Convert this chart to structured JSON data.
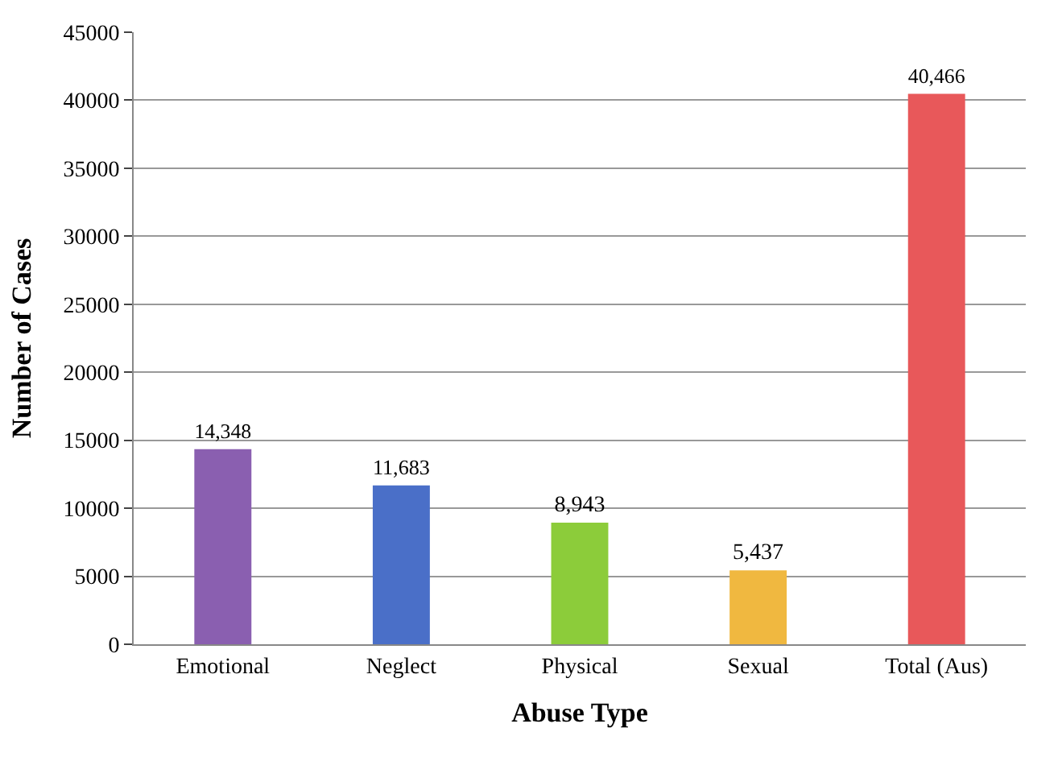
{
  "chart_data": {
    "type": "bar",
    "xlabel": "Abuse Type",
    "ylabel": "Number of Cases",
    "categories": [
      "Emotional",
      "Neglect",
      "Physical",
      "Sexual",
      "Total (Aus)"
    ],
    "values": [
      14348,
      11683,
      8943,
      5437,
      40466
    ],
    "colors": [
      "#8a5fb0",
      "#4a6fc8",
      "#8ccc3a",
      "#f0b840",
      "#e8585a"
    ],
    "value_labels": [
      "14,348",
      "11,683",
      "8,943",
      "5,437",
      "40,466"
    ],
    "ylim": [
      0,
      45000
    ],
    "yticks": [
      0,
      5000,
      10000,
      15000,
      20000,
      25000,
      30000,
      35000,
      40000,
      45000
    ],
    "grid": "y"
  }
}
